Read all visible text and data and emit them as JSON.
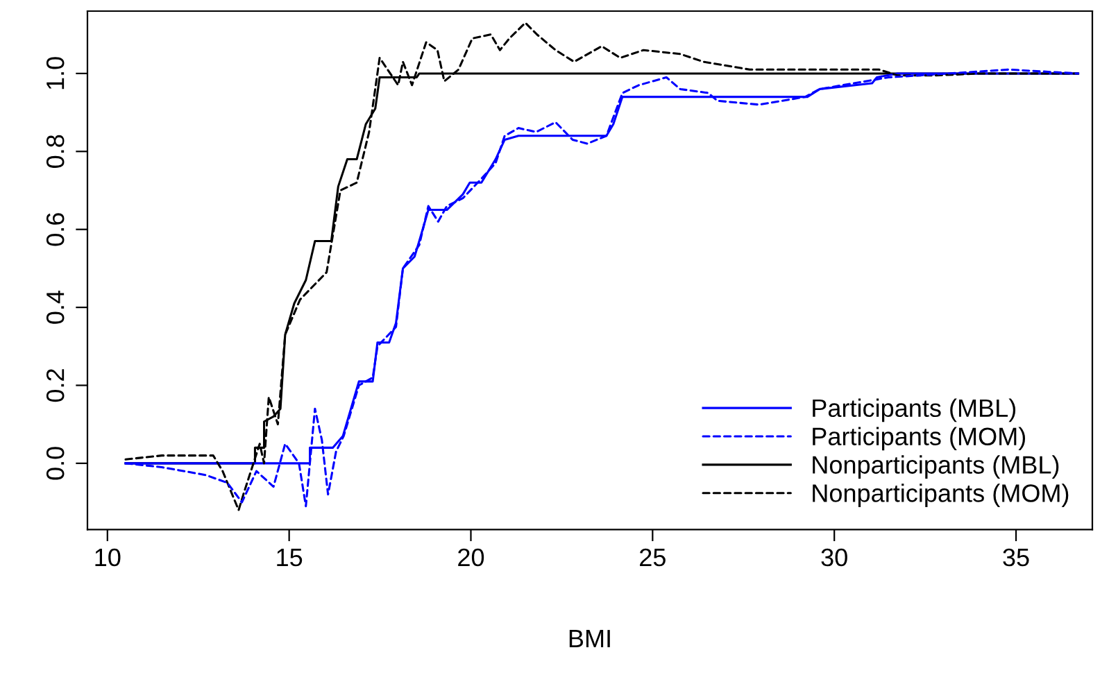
{
  "chart_data": {
    "type": "line",
    "xlabel": "BMI",
    "xlim": [
      9.45,
      37.1
    ],
    "ylim": [
      -0.17,
      1.16
    ],
    "xticks": [
      10,
      15,
      20,
      25,
      30,
      35
    ],
    "yticks": [
      {
        "value": 0,
        "label": "0.0"
      },
      {
        "value": 0.2,
        "label": "0.2"
      },
      {
        "value": 0.4,
        "label": "0.4"
      },
      {
        "value": 0.6,
        "label": "0.6"
      },
      {
        "value": 0.8,
        "label": "0.8"
      },
      {
        "value": 1,
        "label": "1.0"
      }
    ],
    "grid": false,
    "legend": "bottom right",
    "marker": "none",
    "series": [
      {
        "name": "Participants (MBL)",
        "color": "#0000ff",
        "line_style": "solid",
        "x": [
          10.5,
          15.57,
          15.57,
          16.2,
          16.48,
          16.92,
          17.3,
          17.43,
          17.75,
          17.94,
          18.13,
          18.45,
          18.58,
          18.83,
          19.34,
          19.78,
          19.97,
          20.29,
          20.68,
          20.93,
          21.31,
          23.73,
          23.92,
          24.17,
          29.26,
          29.6,
          31.04,
          31.17,
          31.74,
          36.71
        ],
        "values": [
          0,
          0,
          0.04,
          0.04,
          0.07,
          0.21,
          0.21,
          0.31,
          0.31,
          0.36,
          0.5,
          0.53,
          0.57,
          0.65,
          0.65,
          0.69,
          0.72,
          0.72,
          0.78,
          0.83,
          0.84,
          0.84,
          0.87,
          0.94,
          0.94,
          0.96,
          0.975,
          0.99,
          1.0,
          1.0
        ]
      },
      {
        "name": "Participants (MOM)",
        "color": "#0000ff",
        "line_style": "dashed",
        "x": [
          10.5,
          11.5,
          12.7,
          13.3,
          13.7,
          14.1,
          14.57,
          14.89,
          15.27,
          15.46,
          15.71,
          15.9,
          16.07,
          16.29,
          16.5,
          16.92,
          17.3,
          17.43,
          17.94,
          18.13,
          18.58,
          18.83,
          19.1,
          19.34,
          19.78,
          20.29,
          20.68,
          20.93,
          21.31,
          21.8,
          22.33,
          22.8,
          23.2,
          23.73,
          24.17,
          24.62,
          25.38,
          25.76,
          26.53,
          26.78,
          27.93,
          29.2,
          29.6,
          31.49,
          34.8,
          36.71
        ],
        "values": [
          0,
          -0.01,
          -0.03,
          -0.05,
          -0.1,
          -0.02,
          -0.06,
          0.05,
          0.0,
          -0.11,
          0.14,
          0.06,
          -0.08,
          0.03,
          0.07,
          0.2,
          0.22,
          0.3,
          0.35,
          0.5,
          0.56,
          0.66,
          0.62,
          0.66,
          0.68,
          0.73,
          0.77,
          0.84,
          0.86,
          0.85,
          0.875,
          0.83,
          0.82,
          0.84,
          0.95,
          0.97,
          0.99,
          0.96,
          0.95,
          0.93,
          0.92,
          0.94,
          0.96,
          0.99,
          1.01,
          1.0
        ]
      },
      {
        "name": "Nonparticipants (MBL)",
        "color": "#000000",
        "line_style": "solid",
        "x": [
          10.5,
          14.06,
          14.06,
          14.31,
          14.31,
          14.57,
          14.76,
          14.89,
          15.14,
          15.46,
          15.71,
          16.16,
          16.35,
          16.6,
          16.86,
          17.11,
          17.37,
          17.49,
          18.51,
          18.58,
          36.71
        ],
        "values": [
          0,
          0,
          0.04,
          0.04,
          0.107,
          0.12,
          0.14,
          0.33,
          0.41,
          0.47,
          0.57,
          0.57,
          0.71,
          0.78,
          0.78,
          0.87,
          0.91,
          0.99,
          0.99,
          1.0,
          1.0
        ]
      },
      {
        "name": "Nonparticipants (MOM)",
        "color": "#000000",
        "line_style": "dashed",
        "x": [
          10.5,
          11.5,
          12.91,
          13.17,
          13.61,
          13.74,
          14.19,
          14.31,
          14.44,
          14.69,
          14.89,
          15.3,
          16.03,
          16.41,
          16.86,
          17.2,
          17.49,
          18.0,
          18.13,
          18.38,
          18.77,
          19.08,
          19.27,
          19.66,
          20.04,
          20.55,
          20.8,
          21.06,
          21.5,
          21.82,
          22.33,
          22.84,
          23.6,
          24.11,
          24.75,
          25.76,
          26.4,
          27.67,
          28.94,
          31.23,
          31.74,
          32.76,
          34.03,
          36.71
        ],
        "values": [
          0.01,
          0.02,
          0.02,
          -0.02,
          -0.12,
          -0.08,
          0.05,
          0.0,
          0.17,
          0.1,
          0.33,
          0.42,
          0.49,
          0.7,
          0.72,
          0.85,
          1.04,
          0.97,
          1.03,
          0.97,
          1.08,
          1.06,
          0.98,
          1.01,
          1.09,
          1.1,
          1.06,
          1.09,
          1.13,
          1.1,
          1.06,
          1.03,
          1.07,
          1.04,
          1.06,
          1.05,
          1.03,
          1.01,
          1.01,
          1.01,
          0.995,
          0.995,
          1.0,
          1.0
        ]
      }
    ]
  }
}
